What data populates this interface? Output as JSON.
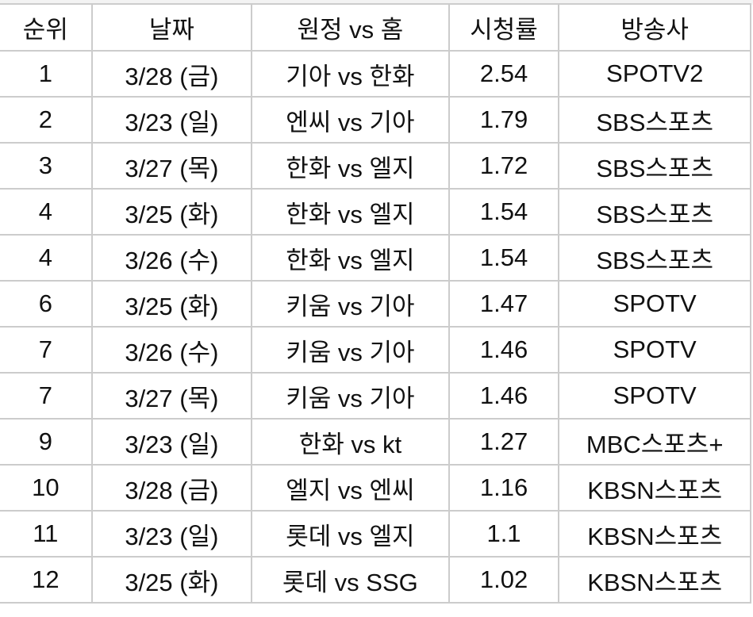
{
  "table": {
    "headers": [
      "순위",
      "날짜",
      "원정 vs 홈",
      "시청률",
      "방송사"
    ],
    "rows": [
      [
        "1",
        "3/28 (금)",
        "기아 vs 한화",
        "2.54",
        "SPOTV2"
      ],
      [
        "2",
        "3/23 (일)",
        "엔씨 vs 기아",
        "1.79",
        "SBS스포츠"
      ],
      [
        "3",
        "3/27 (목)",
        "한화 vs 엘지",
        "1.72",
        "SBS스포츠"
      ],
      [
        "4",
        "3/25 (화)",
        "한화 vs 엘지",
        "1.54",
        "SBS스포츠"
      ],
      [
        "4",
        "3/26 (수)",
        "한화 vs 엘지",
        "1.54",
        "SBS스포츠"
      ],
      [
        "6",
        "3/25 (화)",
        "키움 vs 기아",
        "1.47",
        "SPOTV"
      ],
      [
        "7",
        "3/26 (수)",
        "키움 vs 기아",
        "1.46",
        "SPOTV"
      ],
      [
        "7",
        "3/27 (목)",
        "키움 vs 기아",
        "1.46",
        "SPOTV"
      ],
      [
        "9",
        "3/23 (일)",
        "한화 vs kt",
        "1.27",
        "MBC스포츠+"
      ],
      [
        "10",
        "3/28 (금)",
        "엘지 vs 엔씨",
        "1.16",
        "KBSN스포츠"
      ],
      [
        "11",
        "3/23 (일)",
        "롯데 vs 엘지",
        "1.1",
        "KBSN스포츠"
      ],
      [
        "12",
        "3/25 (화)",
        "롯데 vs SSG",
        "1.02",
        "KBSN스포츠"
      ]
    ]
  }
}
